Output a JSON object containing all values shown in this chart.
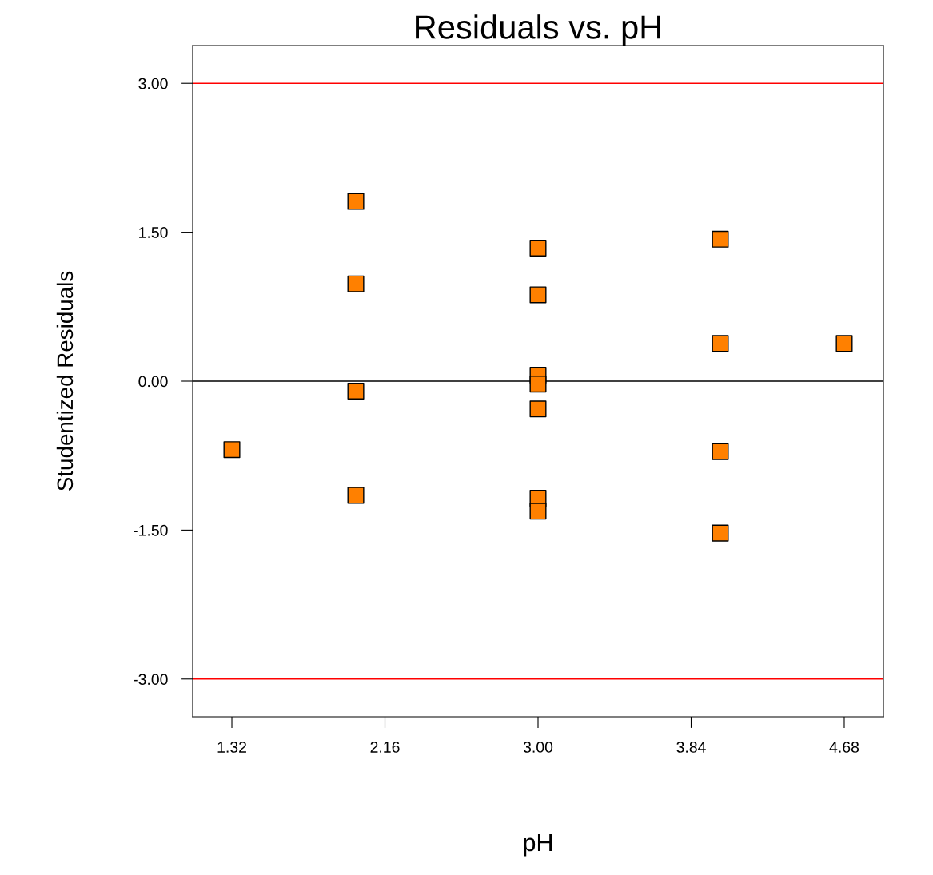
{
  "chart_data": {
    "type": "scatter",
    "title": "Residuals vs. pH",
    "xlabel": "pH",
    "ylabel": "Studentized Residuals",
    "x": [
      1.32,
      2.0,
      2.0,
      2.0,
      2.0,
      3.0,
      3.0,
      3.0,
      3.0,
      3.0,
      3.0,
      3.0,
      4.0,
      4.0,
      4.0,
      4.0,
      4.68
    ],
    "series": [
      {
        "color": "#ff8000",
        "values": [
          -0.69,
          1.81,
          0.98,
          -0.1,
          -1.15,
          1.34,
          0.87,
          0.06,
          -0.03,
          -0.28,
          -1.18,
          -1.31,
          1.43,
          0.38,
          -0.71,
          -1.53,
          0.38
        ]
      }
    ],
    "xlim": [
      1.105,
      4.895
    ],
    "ylim": [
      -3.38,
      3.38
    ],
    "xticks": [
      {
        "value": 1.32,
        "label": "1.32"
      },
      {
        "value": 2.16,
        "label": "2.16"
      },
      {
        "value": 3.0,
        "label": "3.00"
      },
      {
        "value": 3.84,
        "label": "3.84"
      },
      {
        "value": 4.68,
        "label": "4.68"
      }
    ],
    "yticks": [
      {
        "value": -3,
        "label": "-3.00"
      },
      {
        "value": -1.5,
        "label": "-1.50"
      },
      {
        "value": 0,
        "label": "0.00"
      },
      {
        "value": 1.5,
        "label": "1.50"
      },
      {
        "value": 3,
        "label": "3.00"
      }
    ],
    "ref_lines": [
      {
        "axis": "y",
        "value": 3,
        "color": "#ff0000"
      },
      {
        "axis": "y",
        "value": 0,
        "color": "#000000"
      },
      {
        "axis": "y",
        "value": -3,
        "color": "#ff0000"
      }
    ],
    "marker": "square",
    "grid": false,
    "legend": false
  }
}
